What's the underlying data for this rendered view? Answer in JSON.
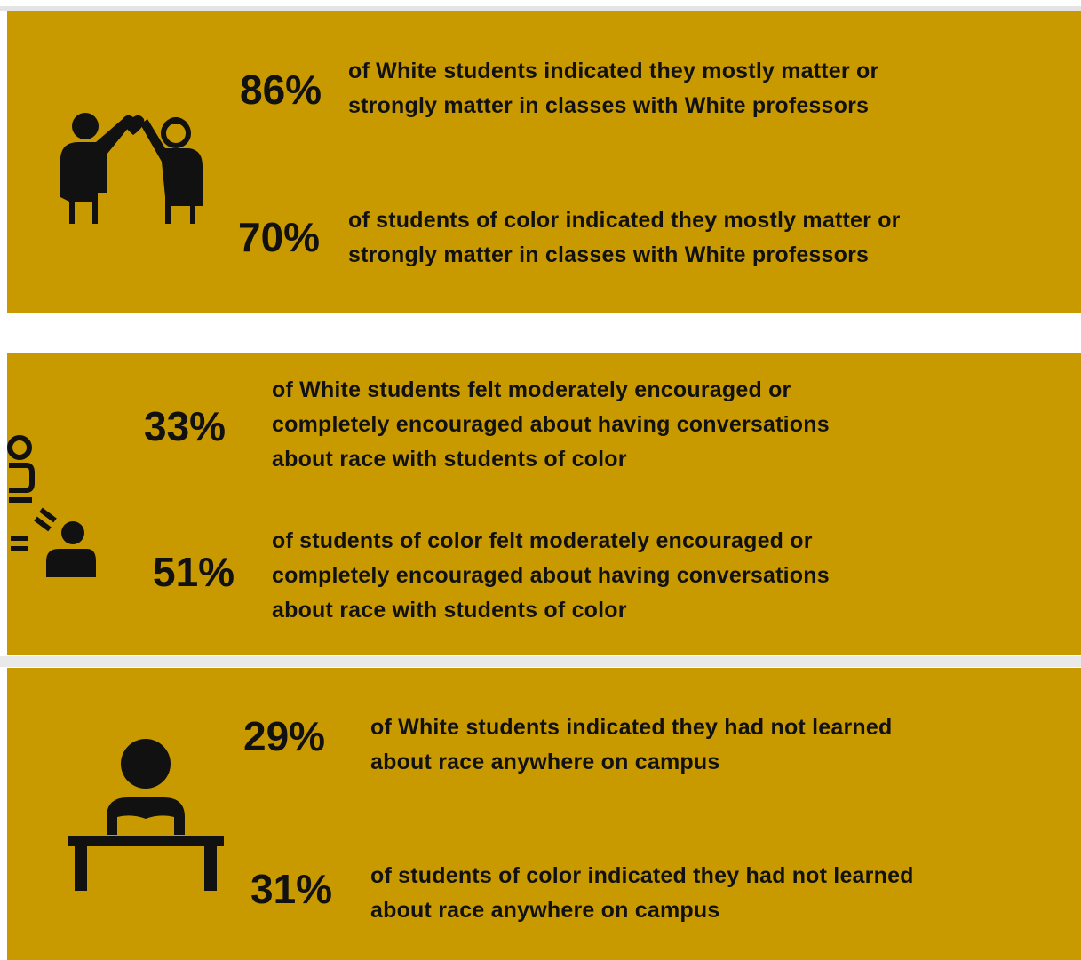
{
  "panels": [
    {
      "stats": [
        {
          "value": "86%",
          "lines": [
            "of White students indicated they mostly matter or",
            "strongly matter in classes with White professors"
          ]
        },
        {
          "value": "70%",
          "lines": [
            "of students of color indicated they mostly matter or",
            "strongly matter in classes with White professors"
          ]
        }
      ]
    },
    {
      "stats": [
        {
          "value": "33%",
          "lines": [
            "of White students felt moderately encouraged or",
            "completely encouraged about having conversations",
            "about race with students of color"
          ]
        },
        {
          "value": "51%",
          "lines": [
            "of students of color felt moderately encouraged or",
            "completely encouraged about having conversations",
            "about race with students of color"
          ]
        }
      ]
    },
    {
      "stats": [
        {
          "value": "29%",
          "lines": [
            "of White students indicated they had not learned",
            "about race anywhere on campus"
          ]
        },
        {
          "value": "31%",
          "lines": [
            "of students of color indicated they had not learned",
            "about race anywhere on campus"
          ]
        }
      ]
    }
  ]
}
